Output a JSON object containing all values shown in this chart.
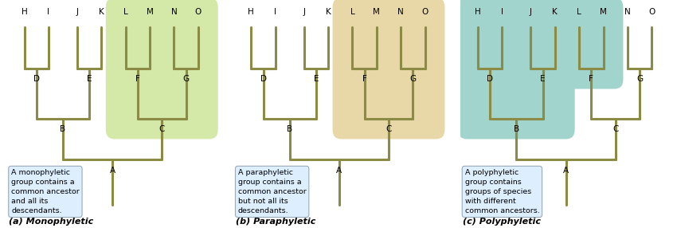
{
  "tree_color": "#8B8B45",
  "line_width": 2.2,
  "bg_color": "#FFFFFF",
  "panel_titles": [
    "(a) Monophyletic",
    "(b) Paraphyletic",
    "(c) Polyphyletic"
  ],
  "highlight_colors": [
    "#d4e8a8",
    "#e8d8a8",
    "#a0d4cc"
  ],
  "text_box_color": "#ddeeff",
  "text_box_edge": "#99aabb",
  "descriptions": [
    "A monophyletic\ngroup contains a\ncommon ancestor\nand all its\ndescendants.",
    "A paraphyletic\ngroup contains a\ncommon ancestor\nbut not all its\ndescendants.",
    "A polyphyletic\ngroup contains\ngroups of species\nwith different\ncommon ancestors."
  ],
  "leaf_labels": [
    "H",
    "I",
    "J",
    "K",
    "L",
    "M",
    "N",
    "O"
  ],
  "panel_titles_style": "bold italic"
}
